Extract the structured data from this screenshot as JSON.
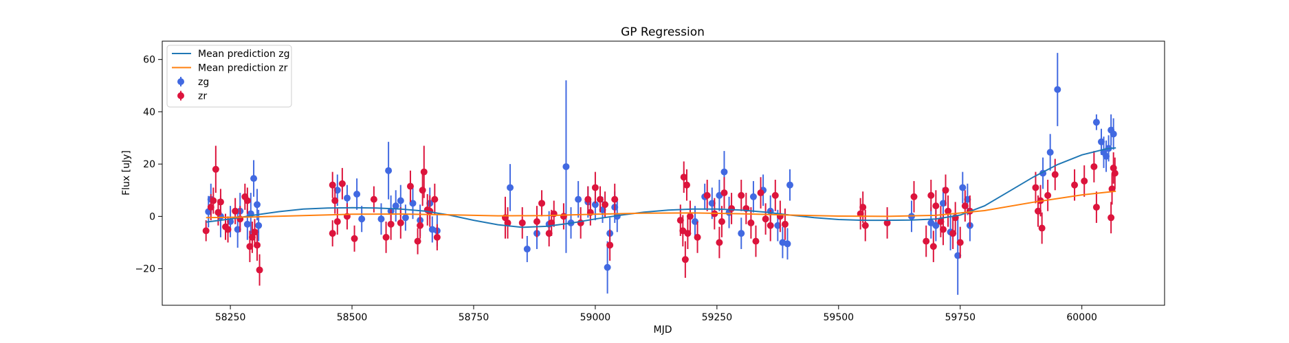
{
  "chart_data": {
    "type": "scatter",
    "title": "GP Regression",
    "xlabel": "MJD",
    "ylabel": "Flux [uJy]",
    "xlim": [
      58110,
      60170
    ],
    "ylim": [
      -34,
      67
    ],
    "xticks": [
      58250,
      58500,
      58750,
      59000,
      59250,
      59500,
      59750,
      60000
    ],
    "yticks": [
      -20,
      0,
      20,
      40,
      60
    ],
    "grid": false,
    "legend_position": "top-left",
    "colors": {
      "zg": "#4169e1",
      "zr": "#dc143c",
      "mean_zg": "#1f77b4",
      "mean_zr": "#ff7f0e"
    },
    "legend": [
      {
        "label": "Mean prediction zg",
        "kind": "line",
        "color": "#1f77b4"
      },
      {
        "label": "Mean prediction zr",
        "kind": "line",
        "color": "#ff7f0e"
      },
      {
        "label": "zg",
        "kind": "errorbar",
        "color": "#4169e1"
      },
      {
        "label": "zr",
        "kind": "errorbar",
        "color": "#dc143c"
      }
    ],
    "series": [
      {
        "name": "Mean prediction zg",
        "kind": "line",
        "points": [
          [
            58200,
            -2.2
          ],
          [
            58250,
            -1
          ],
          [
            58300,
            0.5
          ],
          [
            58350,
            1.8
          ],
          [
            58400,
            2.8
          ],
          [
            58450,
            3.2
          ],
          [
            58500,
            3.3
          ],
          [
            58550,
            3.2
          ],
          [
            58600,
            2.8
          ],
          [
            58650,
            2
          ],
          [
            58700,
            0.5
          ],
          [
            58750,
            -1.5
          ],
          [
            58800,
            -3.2
          ],
          [
            58850,
            -4.2
          ],
          [
            58900,
            -3.8
          ],
          [
            58950,
            -2.6
          ],
          [
            59000,
            -1
          ],
          [
            59050,
            0.4
          ],
          [
            59100,
            1.6
          ],
          [
            59150,
            2.4
          ],
          [
            59200,
            2.8
          ],
          [
            59250,
            2.8
          ],
          [
            59300,
            2.4
          ],
          [
            59350,
            1.6
          ],
          [
            59400,
            0.5
          ],
          [
            59450,
            -0.5
          ],
          [
            59500,
            -1.2
          ],
          [
            59550,
            -1.5
          ],
          [
            59600,
            -1.5
          ],
          [
            59650,
            -1.4
          ],
          [
            59700,
            -1
          ],
          [
            59750,
            0.5
          ],
          [
            59800,
            4
          ],
          [
            59850,
            9.5
          ],
          [
            59900,
            15
          ],
          [
            59950,
            19.8
          ],
          [
            60000,
            23.5
          ],
          [
            60050,
            25.8
          ],
          [
            60070,
            26.2
          ]
        ]
      },
      {
        "name": "Mean prediction zr",
        "kind": "line",
        "points": [
          [
            58200,
            -0.5
          ],
          [
            58300,
            -0.2
          ],
          [
            58400,
            0.3
          ],
          [
            58500,
            0.8
          ],
          [
            58600,
            0.9
          ],
          [
            58700,
            0.6
          ],
          [
            58800,
            0.2
          ],
          [
            58900,
            0.3
          ],
          [
            59000,
            0.8
          ],
          [
            59100,
            1.2
          ],
          [
            59200,
            1.3
          ],
          [
            59300,
            1
          ],
          [
            59400,
            0.5
          ],
          [
            59500,
            0.1
          ],
          [
            59600,
            0
          ],
          [
            59700,
            0.4
          ],
          [
            59800,
            2.2
          ],
          [
            59900,
            5.4
          ],
          [
            60000,
            8.2
          ],
          [
            60070,
            9.6
          ]
        ]
      },
      {
        "name": "zg",
        "kind": "errorbar",
        "points": [
          [
            58210,
            6.5,
            6
          ],
          [
            58205,
            1.8,
            6
          ],
          [
            58230,
            0,
            8
          ],
          [
            58250,
            -2,
            6
          ],
          [
            58265,
            -5,
            7
          ],
          [
            58270,
            2,
            7
          ],
          [
            58285,
            -3,
            6
          ],
          [
            58292,
            1,
            8
          ],
          [
            58298,
            14.5,
            7
          ],
          [
            58305,
            4.5,
            6
          ],
          [
            58308,
            -3.5,
            6
          ],
          [
            58470,
            10,
            6
          ],
          [
            58490,
            7,
            5
          ],
          [
            58510,
            8.5,
            6
          ],
          [
            58520,
            -1,
            5
          ],
          [
            58560,
            -1,
            6
          ],
          [
            58575,
            17.5,
            11
          ],
          [
            58580,
            2,
            6
          ],
          [
            58590,
            4,
            6
          ],
          [
            58600,
            6,
            6
          ],
          [
            58610,
            -0.5,
            5
          ],
          [
            58625,
            5,
            6
          ],
          [
            58640,
            -1.5,
            6
          ],
          [
            58660,
            5,
            6
          ],
          [
            58665,
            -5,
            5
          ],
          [
            58675,
            -5.5,
            6
          ],
          [
            58825,
            11,
            9
          ],
          [
            58860,
            -12.5,
            5
          ],
          [
            58880,
            -6.5,
            6
          ],
          [
            58905,
            -3,
            5
          ],
          [
            58940,
            19,
            33
          ],
          [
            58950,
            -2.5,
            6
          ],
          [
            58965,
            6.5,
            7
          ],
          [
            58985,
            5.5,
            6
          ],
          [
            59000,
            4.5,
            6
          ],
          [
            59015,
            2.5,
            5
          ],
          [
            59025,
            -19.5,
            10
          ],
          [
            59030,
            -6.5,
            6
          ],
          [
            59040,
            3.5,
            6
          ],
          [
            59045,
            0,
            6
          ],
          [
            59205,
            -2,
            6
          ],
          [
            59225,
            7.5,
            5
          ],
          [
            59240,
            5,
            6
          ],
          [
            59255,
            8,
            6
          ],
          [
            59265,
            17,
            8
          ],
          [
            59275,
            1.5,
            6
          ],
          [
            59300,
            -6.5,
            6
          ],
          [
            59325,
            7.5,
            6
          ],
          [
            59345,
            10,
            6
          ],
          [
            59360,
            2,
            6
          ],
          [
            59375,
            -3.5,
            6
          ],
          [
            59385,
            -10,
            6
          ],
          [
            59395,
            -10.5,
            6
          ],
          [
            59400,
            12,
            6
          ],
          [
            59650,
            0,
            6
          ],
          [
            59690,
            -2.5,
            6
          ],
          [
            59700,
            -3.5,
            6
          ],
          [
            59715,
            5,
            6
          ],
          [
            59730,
            -6,
            7
          ],
          [
            59745,
            -15,
            15
          ],
          [
            59755,
            11,
            6
          ],
          [
            59765,
            6.5,
            6
          ],
          [
            59770,
            -3.5,
            6
          ],
          [
            59920,
            16.5,
            6
          ],
          [
            59935,
            24.5,
            7
          ],
          [
            59950,
            48.5,
            14
          ],
          [
            60030,
            36,
            3
          ],
          [
            60040,
            28.5,
            5
          ],
          [
            60045,
            24.5,
            6
          ],
          [
            60050,
            23,
            6
          ],
          [
            60055,
            26,
            5
          ],
          [
            60060,
            33,
            6
          ],
          [
            60065,
            31.5,
            6
          ]
        ]
      },
      {
        "name": "zr",
        "kind": "errorbar",
        "points": [
          [
            58200,
            -5.5,
            4
          ],
          [
            58210,
            3.5,
            5
          ],
          [
            58215,
            6,
            5
          ],
          [
            58220,
            18,
            9
          ],
          [
            58225,
            1.5,
            5
          ],
          [
            58230,
            5.5,
            5
          ],
          [
            58240,
            -4,
            5
          ],
          [
            58245,
            -5,
            5
          ],
          [
            58260,
            2,
            5
          ],
          [
            58270,
            -1,
            5
          ],
          [
            58280,
            7.5,
            5
          ],
          [
            58285,
            6,
            5
          ],
          [
            58290,
            -11.5,
            6
          ],
          [
            58295,
            -8,
            6
          ],
          [
            58300,
            -6,
            5
          ],
          [
            58305,
            -11,
            6
          ],
          [
            58310,
            -20.5,
            6
          ],
          [
            58460,
            12,
            5
          ],
          [
            58465,
            6,
            5
          ],
          [
            58470,
            -2,
            5
          ],
          [
            58460,
            -6.5,
            5
          ],
          [
            58480,
            12.5,
            6
          ],
          [
            58490,
            0,
            5
          ],
          [
            58505,
            -8.5,
            5
          ],
          [
            58545,
            6.5,
            5
          ],
          [
            58570,
            -8,
            6
          ],
          [
            58580,
            -3,
            6
          ],
          [
            58600,
            -2.5,
            6
          ],
          [
            58620,
            11.5,
            6
          ],
          [
            58635,
            -9.5,
            5
          ],
          [
            58640,
            -3.5,
            5
          ],
          [
            58645,
            10,
            6
          ],
          [
            58648,
            17,
            10
          ],
          [
            58655,
            2.5,
            6
          ],
          [
            58660,
            2,
            6
          ],
          [
            58670,
            6.5,
            6
          ],
          [
            58675,
            -8,
            5
          ],
          [
            58815,
            -0.5,
            8
          ],
          [
            58820,
            -2.5,
            6
          ],
          [
            58850,
            -2.5,
            6
          ],
          [
            58880,
            -2,
            6
          ],
          [
            58890,
            5,
            5
          ],
          [
            58905,
            -6.5,
            5
          ],
          [
            58910,
            -2.5,
            5
          ],
          [
            58915,
            1,
            5
          ],
          [
            58935,
            0,
            5
          ],
          [
            58970,
            -2.5,
            6
          ],
          [
            58985,
            6.5,
            5
          ],
          [
            58990,
            1.5,
            5
          ],
          [
            59000,
            11,
            6
          ],
          [
            59010,
            6.5,
            5
          ],
          [
            59020,
            4.5,
            5
          ],
          [
            59030,
            -11,
            6
          ],
          [
            59040,
            6.5,
            6
          ],
          [
            59175,
            -1.5,
            6
          ],
          [
            59180,
            -5.5,
            6
          ],
          [
            59182,
            15,
            6
          ],
          [
            59185,
            -16.5,
            7
          ],
          [
            59188,
            12,
            6
          ],
          [
            59190,
            -6.5,
            6
          ],
          [
            59195,
            0,
            6
          ],
          [
            59210,
            -8,
            6
          ],
          [
            59230,
            8,
            6
          ],
          [
            59245,
            1,
            6
          ],
          [
            59255,
            -10,
            6
          ],
          [
            59260,
            -2,
            6
          ],
          [
            59265,
            9,
            6
          ],
          [
            59280,
            3,
            6
          ],
          [
            59300,
            8,
            6
          ],
          [
            59310,
            3,
            6
          ],
          [
            59320,
            -2.5,
            6
          ],
          [
            59330,
            -9.5,
            6
          ],
          [
            59340,
            9,
            6
          ],
          [
            59350,
            -1,
            6
          ],
          [
            59360,
            -3.5,
            6
          ],
          [
            59370,
            8,
            6
          ],
          [
            59380,
            0,
            6
          ],
          [
            59390,
            -3,
            6
          ],
          [
            59545,
            1,
            6
          ],
          [
            59550,
            3.5,
            6
          ],
          [
            59555,
            -3.5,
            6
          ],
          [
            59600,
            -2.5,
            6
          ],
          [
            59655,
            7.5,
            6
          ],
          [
            59680,
            -9.5,
            6
          ],
          [
            59690,
            8,
            6
          ],
          [
            59695,
            -11.5,
            6
          ],
          [
            59700,
            4,
            6
          ],
          [
            59710,
            -2,
            6
          ],
          [
            59715,
            -5,
            6
          ],
          [
            59720,
            10,
            6
          ],
          [
            59725,
            2,
            6
          ],
          [
            59735,
            -6.5,
            6
          ],
          [
            59740,
            -0.5,
            6
          ],
          [
            59750,
            -10,
            6
          ],
          [
            59760,
            4,
            6
          ],
          [
            59770,
            2,
            6
          ],
          [
            59905,
            11,
            6
          ],
          [
            59910,
            2,
            6
          ],
          [
            59915,
            6,
            6
          ],
          [
            59918,
            -4.5,
            6
          ],
          [
            59930,
            8,
            6
          ],
          [
            59945,
            16,
            6
          ],
          [
            59985,
            12,
            6
          ],
          [
            60005,
            13.5,
            6
          ],
          [
            60025,
            19,
            6
          ],
          [
            60030,
            3.5,
            6
          ],
          [
            60060,
            -0.5,
            6
          ],
          [
            60062,
            10.5,
            6
          ],
          [
            60065,
            18.5,
            6
          ],
          [
            60068,
            16.5,
            6
          ]
        ]
      }
    ]
  }
}
